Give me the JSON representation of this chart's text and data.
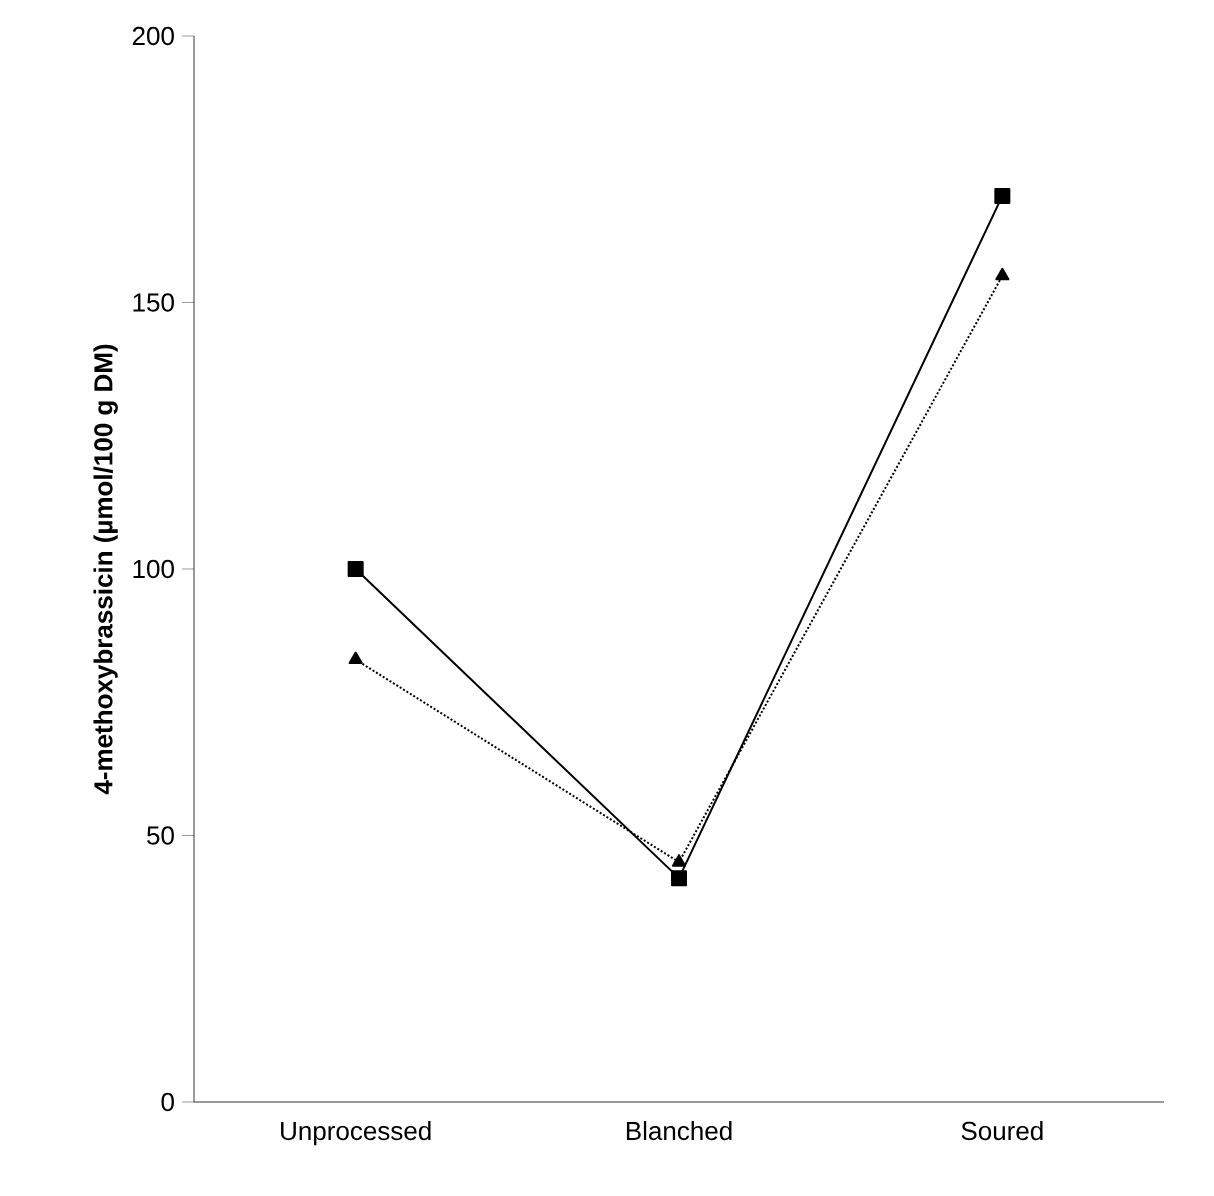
{
  "chart_data": {
    "type": "line",
    "ylabel": "4-methoxybrassicin (µmol/100 g DM)",
    "categories": [
      "Unprocessed",
      "Blanched",
      "Soured"
    ],
    "series": [
      {
        "color": "#000000",
        "values": [
          100,
          42,
          170
        ],
        "marker": "square",
        "line_style": "solid"
      },
      {
        "color": "#000000",
        "values": [
          83,
          45,
          155
        ],
        "marker": "triangle",
        "line_style": "dotted"
      }
    ],
    "ylim": [
      0,
      200
    ],
    "yticks": [
      0,
      50,
      100,
      150,
      200
    ]
  }
}
